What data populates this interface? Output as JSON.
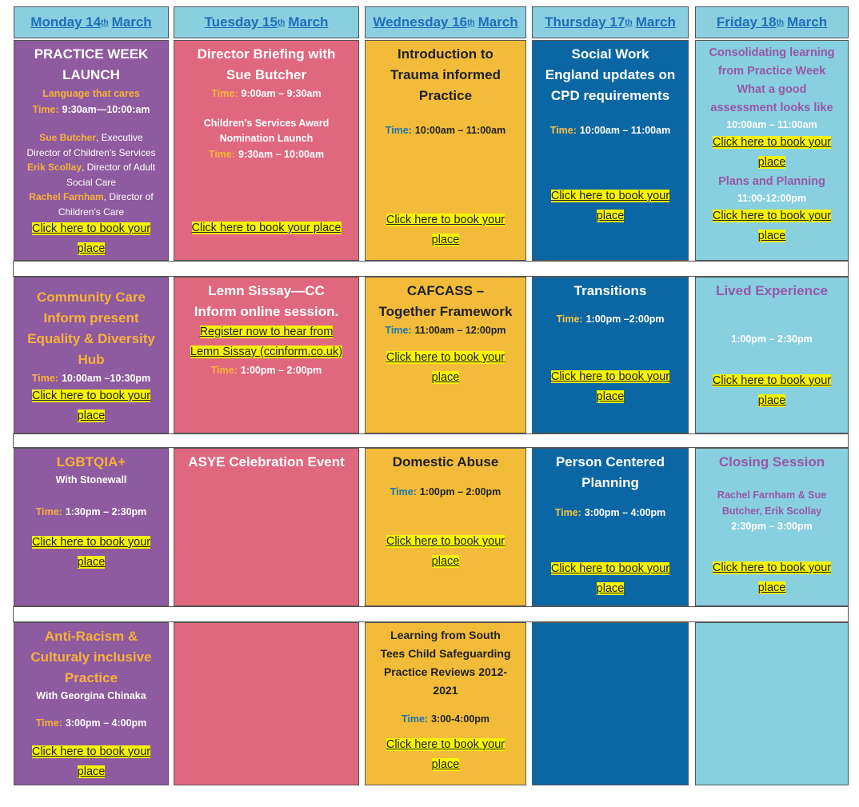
{
  "header": [
    {
      "day": "Monday 14",
      "ordinal": "th",
      "month": "March"
    },
    {
      "day": "Tuesday 15",
      "ordinal": "th",
      "month": "March"
    },
    {
      "day": "Wednesday 16",
      "ordinal": "th",
      "month": "March"
    },
    {
      "day": "Thursday 17",
      "ordinal": "th",
      "month": "March"
    },
    {
      "day": "Friday 18",
      "ordinal": "th",
      "month": "March"
    }
  ],
  "rows": [
    [
      [
        "PRACTICE WEEK LAUNCH",
        "Language that cares",
        [
          "Time:",
          "9:30am—10:00:am"
        ],
        [
          "Sue Butcher",
          ", Executive Director of Children's Services"
        ],
        [
          "Erik Scollay",
          ", Director of Adult Social Care"
        ],
        [
          "Rachel Farnham",
          ", Director of Children's Care"
        ],
        "Click here to book your place"
      ],
      [
        "Director Briefing with Sue Butcher",
        [
          "Time:",
          "9:00am – 9:30am"
        ],
        "Children's Services Award Nomination Launch",
        [
          "Time:",
          "9:30am – 10:00am"
        ],
        "Click here to book your place"
      ],
      [
        "Introduction to Trauma informed Practice",
        [
          "Time:",
          "10:00am – 11:00am"
        ],
        "Click here to book your place"
      ],
      [
        "Social Work England updates on CPD requirements",
        [
          "Time:",
          "10:00am – 11:00am"
        ],
        "Click here to book your place"
      ],
      [
        "Consolidating learning from Practice Week",
        "What a good assessment looks like",
        "10:00am – 11:00am",
        "Click here to book your place",
        "Plans and Planning",
        "11:00-12:00pm",
        "Click here to book your place"
      ]
    ],
    [
      [
        "Community Care Inform present Equality & Diversity Hub",
        [
          "Time:",
          "10:00am –10:30pm"
        ],
        "Click here to book your place"
      ],
      [
        "Lemn Sissay—CC Inform online session.",
        "Register now to hear from Lemn Sissay (ccinform.co.uk)",
        [
          "Time:",
          "1:00pm – 2:00pm"
        ]
      ],
      [
        "CAFCASS – Together Framework",
        [
          "Time:",
          "11:00am – 12:00pm"
        ],
        "Click here to book your place"
      ],
      [
        "Transitions",
        [
          "Time:",
          "1:00pm –2:00pm"
        ],
        "Click here to book your place"
      ],
      [
        "Lived Experience",
        "1:00pm – 2:30pm",
        "Click here to book your place"
      ]
    ],
    [
      [
        "LGBTQIA+",
        "With Stonewall",
        [
          "Time:",
          "1:30pm – 2:30pm"
        ],
        "Click here to book your place"
      ],
      [
        "ASYE Celebration Event"
      ],
      [
        "Domestic Abuse",
        [
          "Time:",
          "1:00pm – 2:00pm"
        ],
        "Click here to book your place"
      ],
      [
        "Person Centered Planning",
        [
          "Time:",
          "3:00pm – 4:00pm"
        ],
        "Click here to book your place"
      ],
      [
        "Closing Session",
        "Rachel Farnham & Sue Butcher, Erik Scollay",
        "2:30pm – 3:00pm",
        "Click here to book your place"
      ]
    ],
    [
      [
        "Anti-Racism & Culturaly inclusive Practice",
        "With Georgina Chinaka",
        [
          "Time:",
          "3:00pm – 4:00pm"
        ],
        "Click here to book your place"
      ],
      [],
      [
        "Learning from South Tees Child Safeguarding Practice Reviews 2012-2021",
        [
          "Time:",
          "3:00-4:00pm"
        ],
        "Click here to book your place"
      ],
      [],
      []
    ]
  ]
}
